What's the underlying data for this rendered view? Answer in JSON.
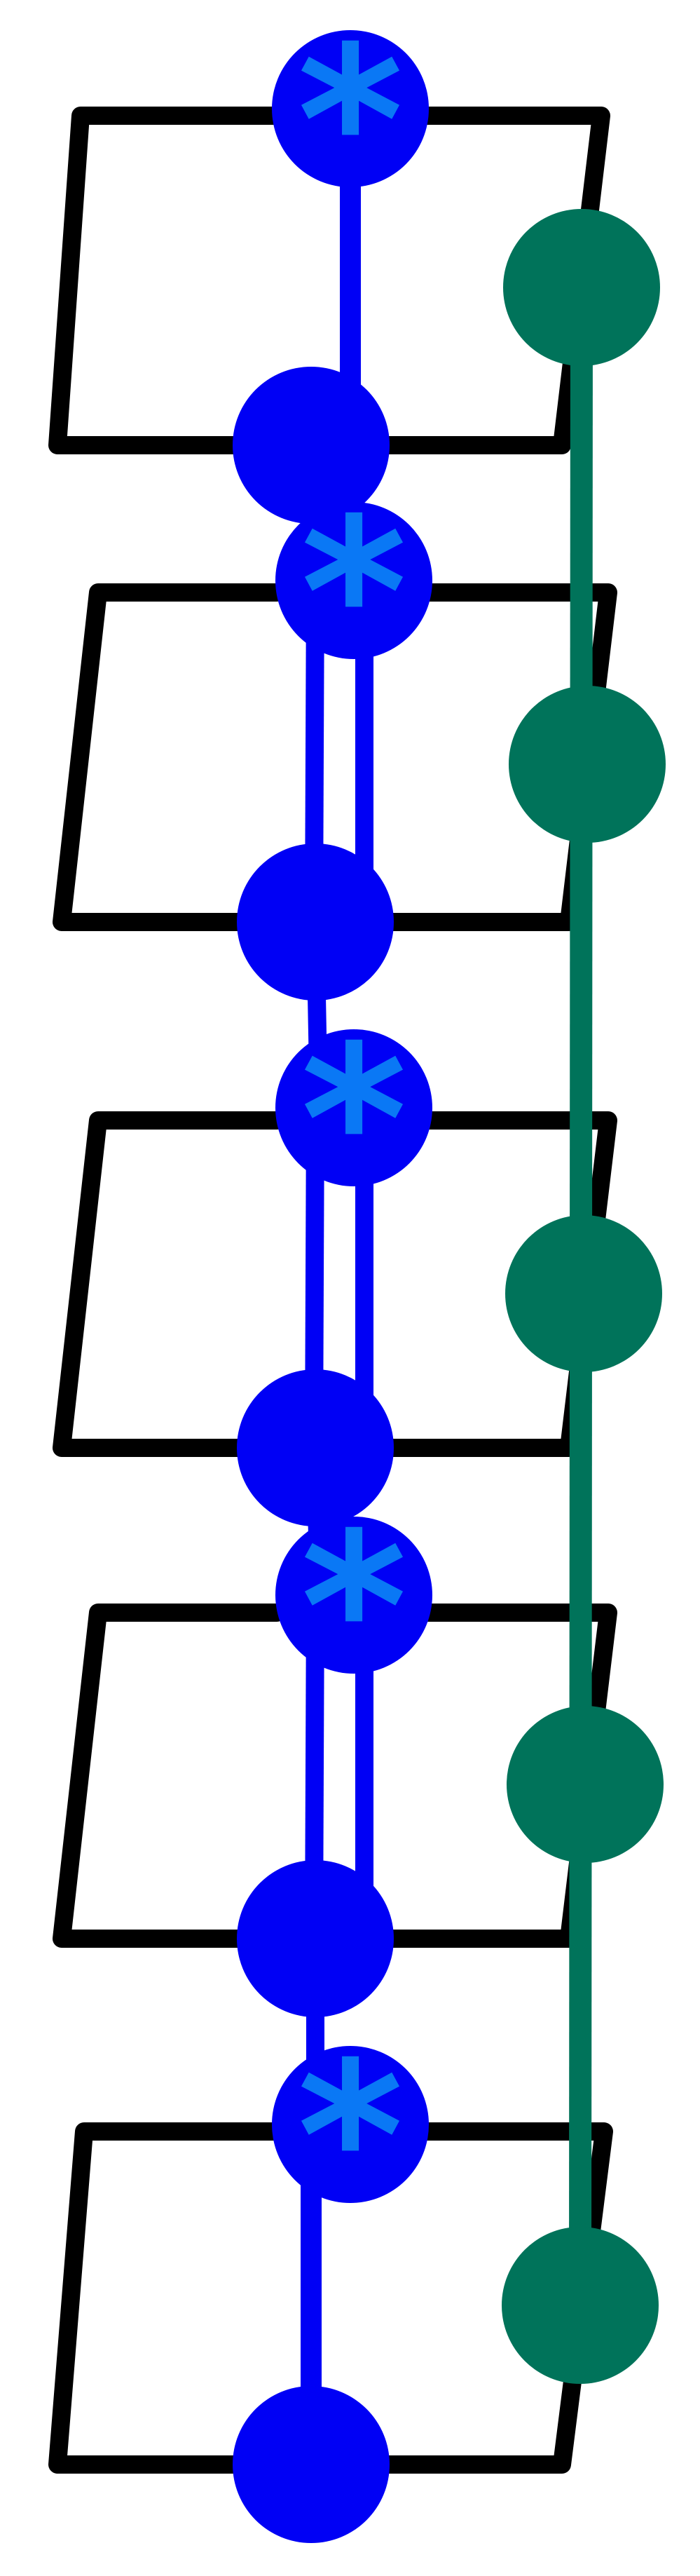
{
  "diagram": {
    "description_shape": "stacked linked loops",
    "colors": {
      "background": "#ffffff",
      "frame": "#000000",
      "blue_node": "#0000f5",
      "asterisk": "#0a78f5",
      "green_node": "#00735a"
    },
    "units": [
      {
        "id": "unit-1",
        "star_mark": "*"
      },
      {
        "id": "unit-2",
        "star_mark": "*"
      },
      {
        "id": "unit-3",
        "star_mark": "*"
      },
      {
        "id": "unit-4",
        "star_mark": "*"
      },
      {
        "id": "unit-5",
        "star_mark": "*"
      }
    ],
    "green_node_count": 5
  }
}
